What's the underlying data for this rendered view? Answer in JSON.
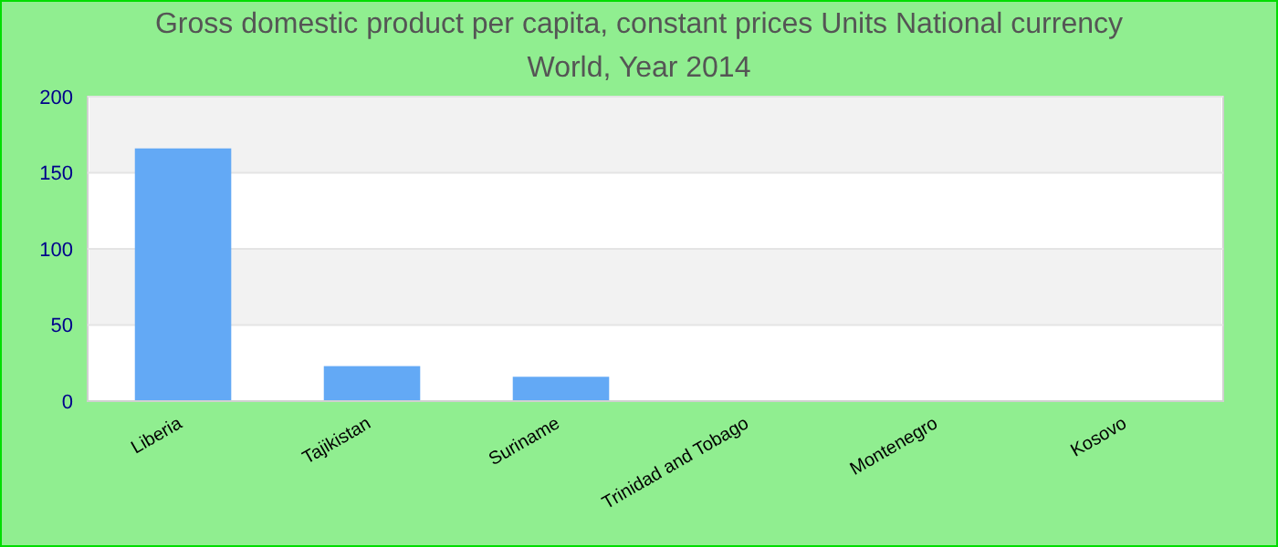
{
  "chart_data": {
    "type": "bar",
    "title": "Gross domestic product per capita, constant prices Units National currency",
    "subtitle": "World, Year 2014",
    "categories": [
      "Liberia",
      "Tajikistan",
      "Suriname",
      "Trinidad and Tobago",
      "Montenegro",
      "Kosovo"
    ],
    "values": [
      166,
      23,
      16,
      0,
      0,
      0
    ],
    "color": "#63a9f5",
    "ylim": [
      0,
      200
    ],
    "yticks": [
      0,
      50,
      100,
      150,
      200
    ],
    "grid": "y"
  }
}
